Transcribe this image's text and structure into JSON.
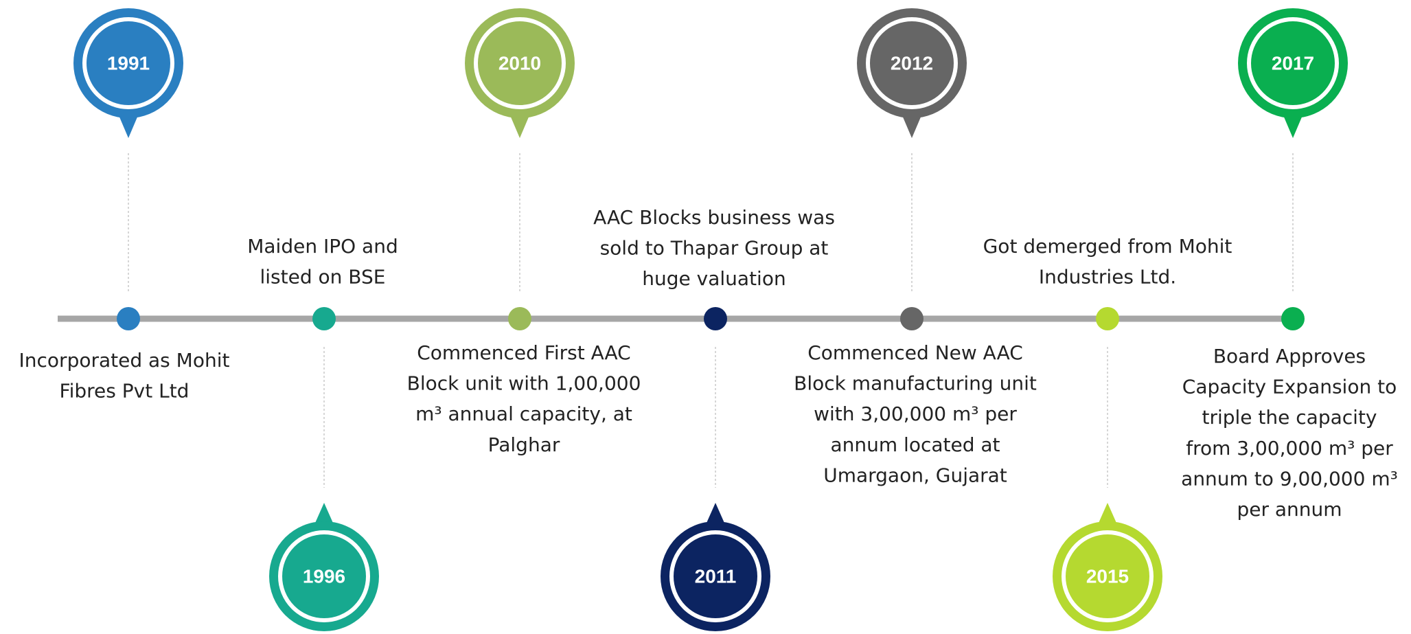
{
  "timeline": {
    "events": [
      {
        "year": "1991",
        "color": "#2a7fc1",
        "lines": [
          "Incorporated as Mohit",
          "Fibres Pvt Ltd"
        ]
      },
      {
        "year": "1996",
        "color": "#17a98f",
        "lines": [
          "Maiden IPO and",
          "listed on BSE"
        ]
      },
      {
        "year": "2010",
        "color": "#9bba59",
        "lines": [
          "Commenced First AAC",
          "Block unit  with 1,00,000",
          "m³ annual capacity, at",
          "Palghar"
        ]
      },
      {
        "year": "2011",
        "color": "#0c2461",
        "lines": [
          "AAC Blocks business was",
          "sold to Thapar Group at",
          "huge valuation"
        ]
      },
      {
        "year": "2012",
        "color": "#666666",
        "lines": [
          "Commenced New AAC",
          "Block manufacturing unit",
          "with 3,00,000 m³ per",
          "annum located at",
          "Umargaon, Gujarat"
        ]
      },
      {
        "year": "2015",
        "color": "#b5d930",
        "lines": [
          "Got demerged from Mohit",
          "Industries Ltd."
        ]
      },
      {
        "year": "2017",
        "color": "#0aaf50",
        "lines": [
          "Board Approves",
          "Capacity Expansion to",
          "triple the capacity",
          "from 3,00,000 m³ per",
          "annum to 9,00,000 m³",
          "per annum"
        ]
      }
    ]
  }
}
